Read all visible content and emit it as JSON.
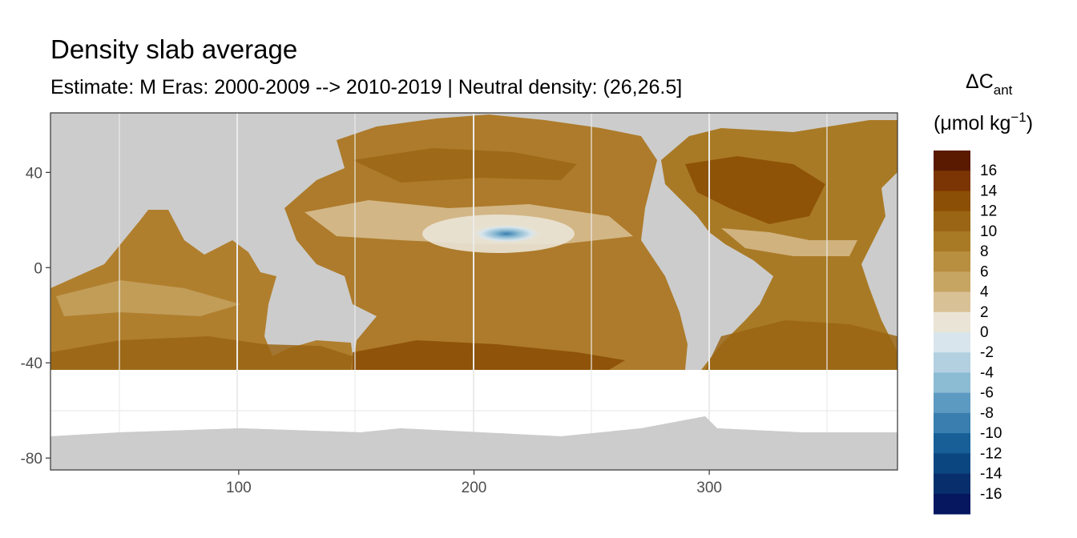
{
  "chart_data": {
    "type": "heatmap",
    "title": "Density slab average",
    "subtitle": "Estimate: M Eras: 2000-2009 --> 2010-2019 | Neutral density: (26,26.5]",
    "x_ticks": [
      100,
      200,
      300
    ],
    "y_ticks": [
      40,
      0,
      -40,
      -80
    ],
    "xlim": [
      20,
      380
    ],
    "ylim": [
      -85,
      65
    ],
    "grid": true,
    "legend": {
      "title_main": "ΔC",
      "title_sub": "ant",
      "unit_open": "(μmol kg",
      "unit_exp": "−1",
      "unit_close": ")",
      "position": "right",
      "breaks": [
        "16",
        "14",
        "12",
        "10",
        "8",
        "6",
        "4",
        "2",
        "0",
        "-2",
        "-4",
        "-6",
        "-8",
        "-10",
        "-12",
        "-14",
        "-16"
      ],
      "colors": [
        "#5a1a02",
        "#7b3403",
        "#8c4f06",
        "#9a6514",
        "#a97a25",
        "#b88e40",
        "#c6a563",
        "#d9c196",
        "#eae4d6",
        "#d8e5ec",
        "#b2d0e0",
        "#8cbbd4",
        "#5c9ac2",
        "#3a7eaf",
        "#175f96",
        "#0c4681",
        "#082f6b",
        "#061760"
      ]
    },
    "features": {
      "land_color": "#cccccc",
      "no_data_color": "#ffffff",
      "blue_anomaly_center": [
        215,
        15
      ],
      "deepest_brown_regions": [
        "North Atlantic ~40N",
        "Southern Indian/Pacific ~-40"
      ]
    }
  }
}
